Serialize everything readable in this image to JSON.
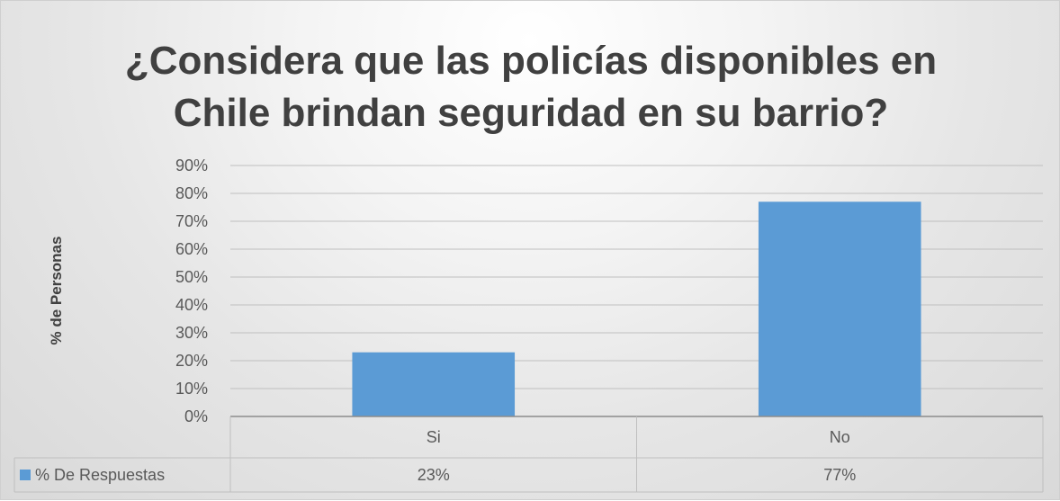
{
  "chart_data": {
    "type": "bar",
    "title_lines": [
      "¿Considera que las policías disponibles en",
      "Chile brindan seguridad en su barrio?"
    ],
    "ylabel": "% de Personas",
    "xlabel": "",
    "categories": [
      "Si",
      "No"
    ],
    "series": [
      {
        "name": "% De Respuestas",
        "values": [
          23,
          77
        ],
        "color": "#5b9bd5"
      }
    ],
    "data_table": {
      "legend_label": "% De Respuestas",
      "cells": [
        "23%",
        "77%"
      ]
    },
    "ylim": [
      0,
      90
    ],
    "yticks": [
      0,
      10,
      20,
      30,
      40,
      50,
      60,
      70,
      80,
      90
    ],
    "ytick_labels": [
      "0%",
      "10%",
      "20%",
      "30%",
      "40%",
      "50%",
      "60%",
      "70%",
      "80%",
      "90%"
    ],
    "grid": true,
    "legend": "data-table-left"
  }
}
